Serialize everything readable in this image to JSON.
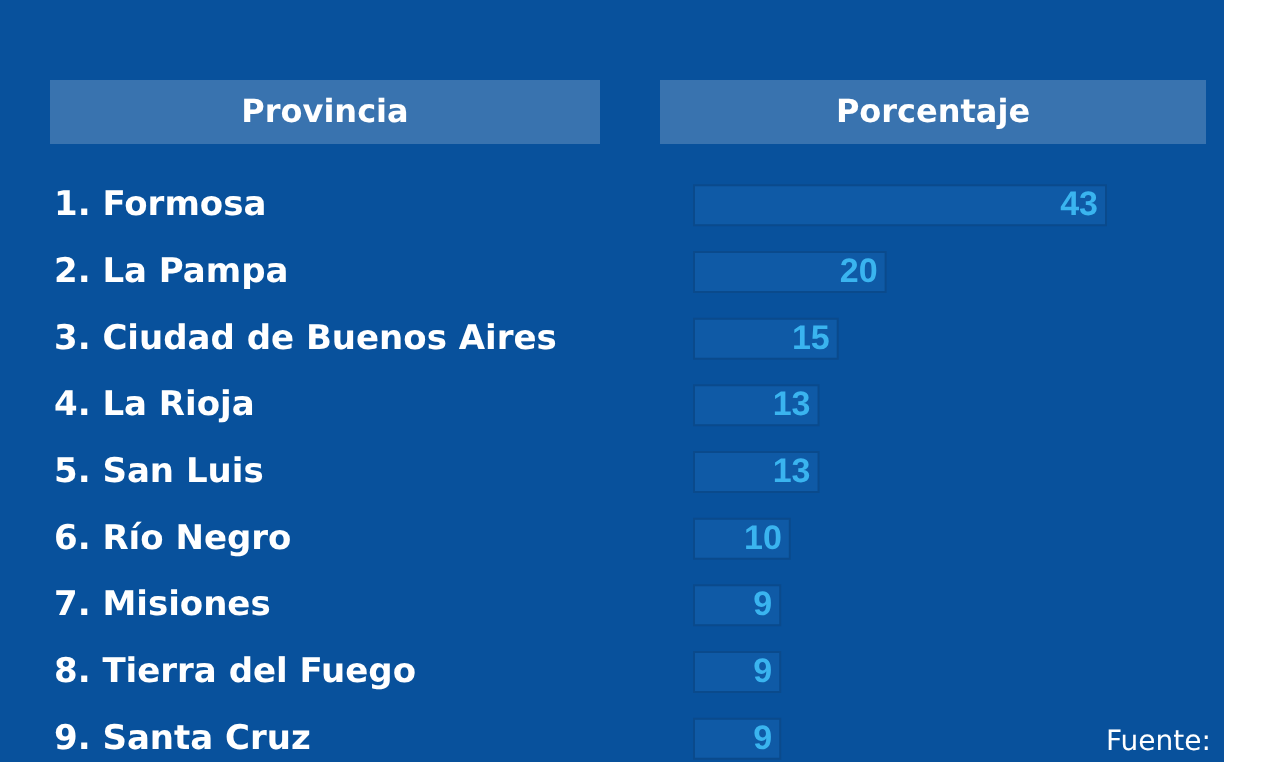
{
  "chart_data": {
    "type": "bar",
    "orientation": "horizontal",
    "ylabel": "Provincia",
    "xlabel": "Porcentaje",
    "categories": [
      "1.  Formosa",
      "2.  La Pampa",
      "3.  Ciudad de Buenos Aires",
      "4.  La Rioja",
      "5.  San Luis",
      "6.  Río Negro",
      "7.  Misiones",
      "8.  Tierra del Fuego",
      "9.  Santa Cruz"
    ],
    "values": [
      43,
      20,
      15,
      13,
      13,
      10,
      9,
      9,
      9
    ],
    "color": "#0f5aa6",
    "data_labels": true,
    "annotations": [
      "Fuente:"
    ]
  }
}
